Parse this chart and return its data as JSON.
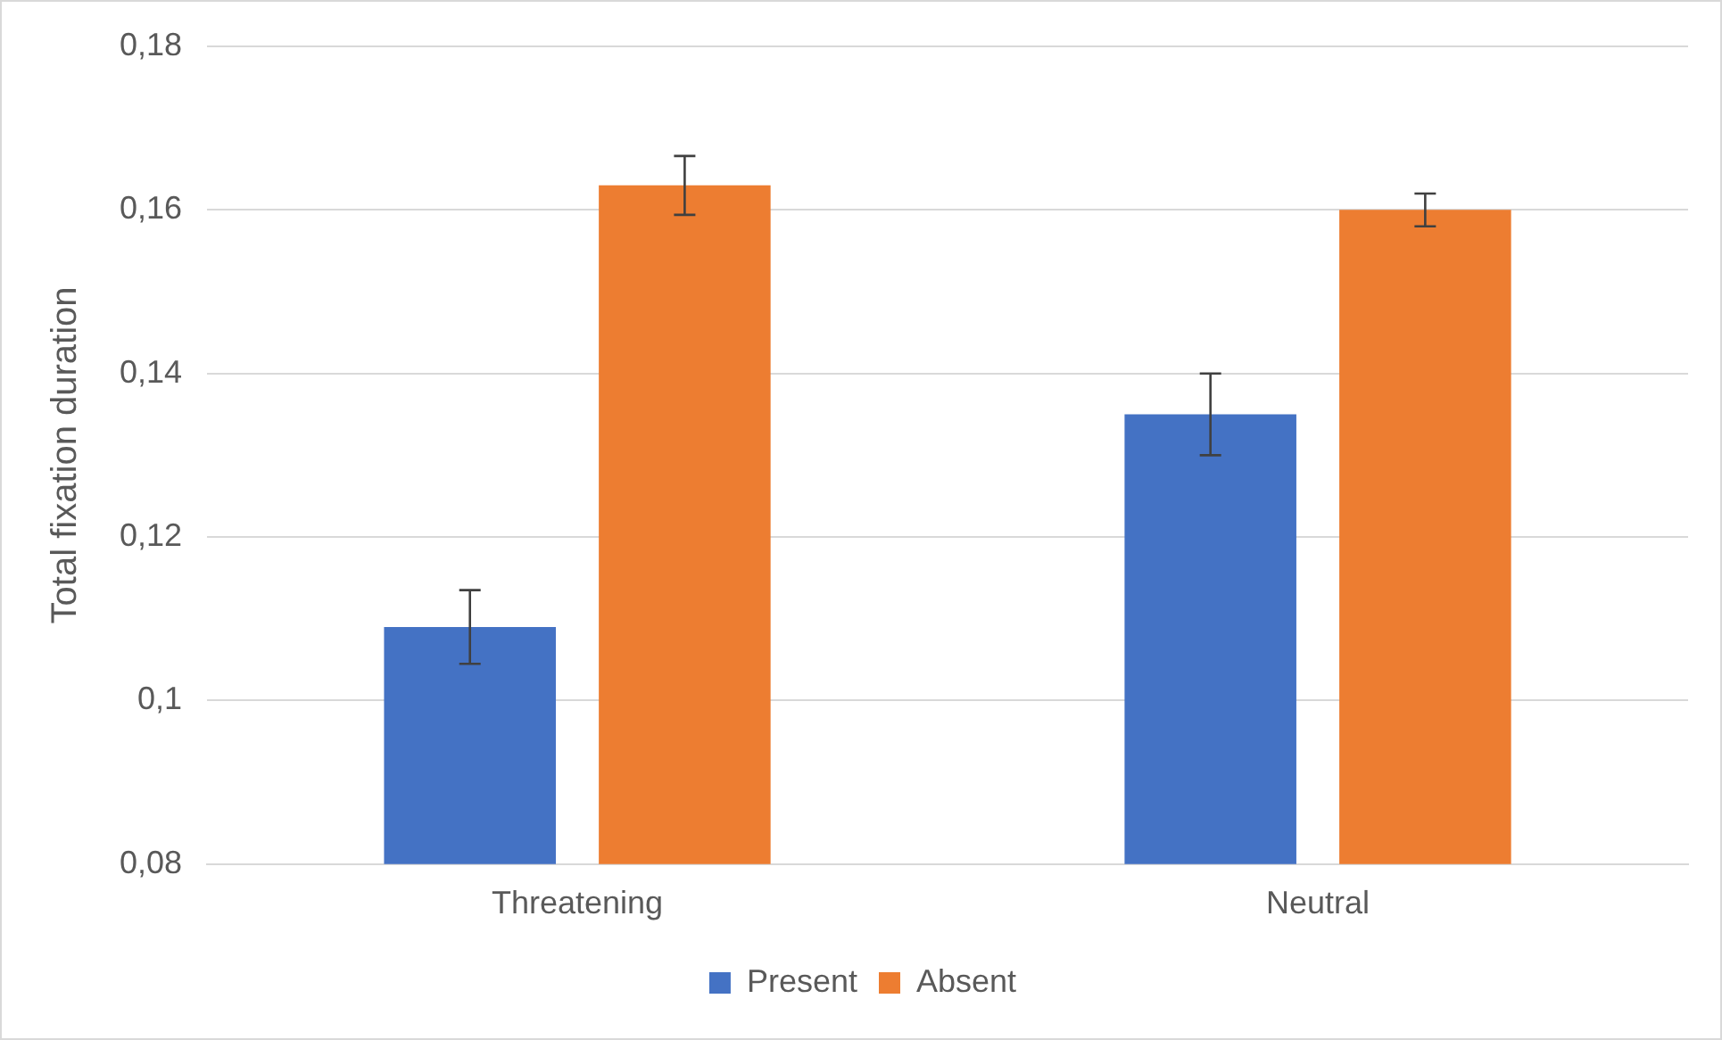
{
  "chart_data": {
    "type": "bar",
    "ylabel": "Total fixation duration",
    "categories": [
      "Threatening",
      "Neutral"
    ],
    "series": [
      {
        "name": "Present",
        "color": "#4472c4",
        "values": [
          0.109,
          0.135
        ],
        "errors": [
          0.0045,
          0.005
        ]
      },
      {
        "name": "Absent",
        "color": "#ed7d31",
        "values": [
          0.163,
          0.16
        ],
        "errors": [
          0.0036,
          0.002
        ]
      }
    ],
    "ylim": [
      0.08,
      0.18
    ],
    "yticks": [
      {
        "value": 0.08,
        "label": "0,08"
      },
      {
        "value": 0.1,
        "label": "0,1"
      },
      {
        "value": 0.12,
        "label": "0,12"
      },
      {
        "value": 0.14,
        "label": "0,14"
      },
      {
        "value": 0.16,
        "label": "0,16"
      },
      {
        "value": 0.18,
        "label": "0,18"
      }
    ],
    "grid": "y",
    "legend": "bottom"
  }
}
